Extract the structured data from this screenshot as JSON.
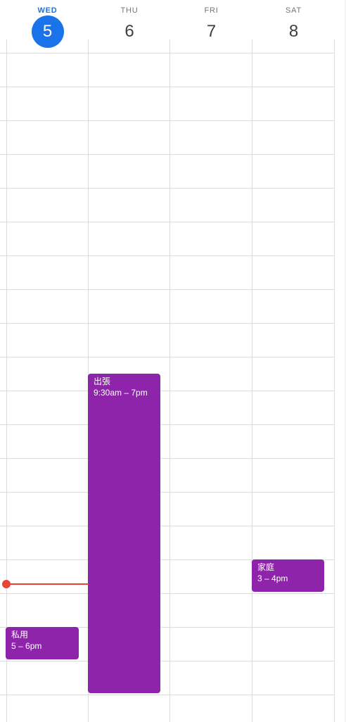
{
  "days": [
    {
      "dow": "WED",
      "num": "5",
      "today": true
    },
    {
      "dow": "THU",
      "num": "6",
      "today": false
    },
    {
      "dow": "FRI",
      "num": "7",
      "today": false
    },
    {
      "dow": "SAT",
      "num": "8",
      "today": false
    }
  ],
  "events": [
    {
      "title": "出張",
      "time": "9:30am – 7pm",
      "color": "#8e24aa"
    },
    {
      "title": "家庭",
      "time": "3 – 4pm",
      "color": "#8e24aa"
    },
    {
      "title": "私用",
      "time": "5 – 6pm",
      "color": "#8e24aa"
    }
  ],
  "colors": {
    "today_accent": "#1a73e8",
    "event": "#8e24aa",
    "current_time": "#ea4335",
    "grid": "#dadce0"
  }
}
